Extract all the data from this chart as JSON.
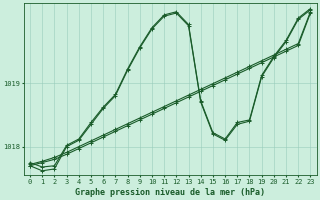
{
  "background_color": "#cceedd",
  "grid_color": "#99ccbb",
  "line_color": "#1a5c2a",
  "xlabel": "Graphe pression niveau de la mer (hPa)",
  "xlabel_fontsize": 6.0,
  "ylabel_ticks": [
    1018,
    1019
  ],
  "xlim": [
    -0.5,
    23.5
  ],
  "ylim": [
    1017.55,
    1020.25
  ],
  "xticks": [
    0,
    1,
    2,
    3,
    4,
    5,
    6,
    7,
    8,
    9,
    10,
    11,
    12,
    13,
    14,
    15,
    16,
    17,
    18,
    19,
    20,
    21,
    22,
    23
  ],
  "series1_x": [
    0,
    1,
    2,
    3,
    4,
    5,
    6,
    7,
    8,
    9,
    10,
    11,
    12,
    13,
    14,
    15,
    16,
    17,
    18,
    19,
    20,
    21,
    22,
    23
  ],
  "series1_y": [
    1017.7,
    1017.62,
    1017.65,
    1018.0,
    1018.1,
    1018.35,
    1018.6,
    1018.8,
    1019.2,
    1019.55,
    1019.85,
    1020.05,
    1020.1,
    1019.9,
    1018.7,
    1018.2,
    1018.1,
    1018.35,
    1018.4,
    1019.1,
    1019.4,
    1019.65,
    1020.0,
    1020.15
  ],
  "series2_x": [
    0,
    1,
    2,
    3,
    4,
    5,
    6,
    7,
    8,
    9,
    10,
    11,
    12,
    13,
    14,
    15,
    16,
    17,
    18,
    19,
    20,
    21,
    22,
    23
  ],
  "series2_y": [
    1017.75,
    1017.68,
    1017.7,
    1018.02,
    1018.12,
    1018.38,
    1018.62,
    1018.82,
    1019.22,
    1019.57,
    1019.87,
    1020.07,
    1020.12,
    1019.92,
    1018.72,
    1018.22,
    1018.12,
    1018.38,
    1018.42,
    1019.12,
    1019.42,
    1019.67,
    1020.02,
    1020.17
  ],
  "series3_x": [
    0,
    1,
    2,
    3,
    4,
    5,
    6,
    7,
    8,
    9,
    10,
    11,
    12,
    13,
    14,
    15,
    16,
    17,
    18,
    19,
    20,
    21,
    22,
    23
  ],
  "series3_y": [
    1017.7,
    1017.75,
    1017.8,
    1017.88,
    1017.97,
    1018.06,
    1018.15,
    1018.24,
    1018.33,
    1018.42,
    1018.51,
    1018.6,
    1018.69,
    1018.78,
    1018.87,
    1018.96,
    1019.05,
    1019.14,
    1019.23,
    1019.32,
    1019.41,
    1019.5,
    1019.59,
    1020.1
  ],
  "series4_x": [
    0,
    1,
    2,
    3,
    4,
    5,
    6,
    7,
    8,
    9,
    10,
    11,
    12,
    13,
    14,
    15,
    16,
    17,
    18,
    19,
    20,
    21,
    22,
    23
  ],
  "series4_y": [
    1017.72,
    1017.77,
    1017.83,
    1017.91,
    1018.0,
    1018.09,
    1018.18,
    1018.27,
    1018.36,
    1018.45,
    1018.54,
    1018.63,
    1018.72,
    1018.81,
    1018.9,
    1018.99,
    1019.08,
    1019.17,
    1019.26,
    1019.35,
    1019.44,
    1019.53,
    1019.62,
    1020.12
  ],
  "line_width": 0.8,
  "marker": "+",
  "marker_size": 3,
  "marker_edge_width": 0.7,
  "tick_fontsize": 5.0,
  "ylabel_fontsize": 5.0
}
